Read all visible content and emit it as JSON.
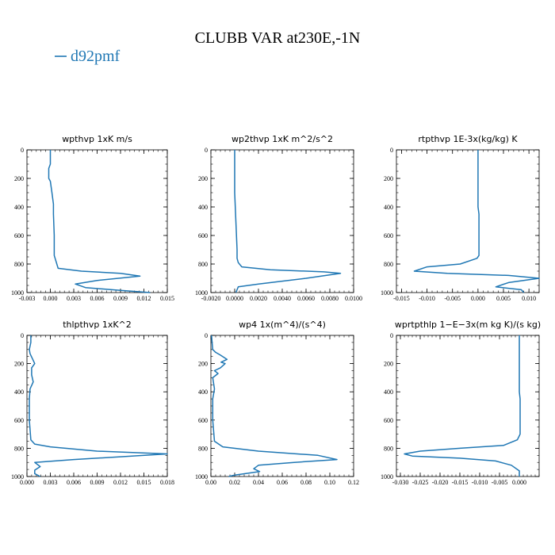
{
  "figure": {
    "title": "CLUBB VAR at230E,-1N",
    "legend_label": "d92pmf",
    "line_color": "#1f77b4"
  },
  "chart_data": [
    {
      "type": "line",
      "title": "wpthvp  1xK m/s",
      "xlim": [
        -0.003,
        0.015
      ],
      "xticks": [
        "-0.003",
        "0.000",
        "0.003",
        "0.006",
        "0.009",
        "0.012",
        "0.015"
      ],
      "ylim": [
        0,
        1000
      ],
      "yticks": [
        "0",
        "200",
        "400",
        "600",
        "800",
        "1000"
      ],
      "y_inverted": true,
      "series": [
        {
          "x": [
            0.0,
            0.0,
            -0.0002,
            -0.0002,
            0.0,
            0.0002,
            0.0004,
            0.0004,
            0.0005,
            0.0005,
            0.001,
            0.004,
            0.009,
            0.0115,
            0.006,
            0.0032,
            0.0045,
            0.009,
            0.0128
          ],
          "y": [
            0,
            100,
            130,
            200,
            220,
            300,
            380,
            450,
            600,
            740,
            830,
            850,
            865,
            885,
            915,
            940,
            965,
            985,
            1000
          ]
        }
      ]
    },
    {
      "type": "line",
      "title": "wp2thvp  1xK m^2/s^2",
      "xlim": [
        -0.002,
        0.01
      ],
      "xticks": [
        "-0.0020",
        "0.0000",
        "0.0020",
        "0.0040",
        "0.0060",
        "0.0080",
        "0.0100"
      ],
      "ylim": [
        0,
        1000
      ],
      "yticks": [
        "0",
        "200",
        "400",
        "600",
        "800",
        "1000"
      ],
      "y_inverted": true,
      "series": [
        {
          "x": [
            0.0,
            0.0,
            0.0001,
            0.0002,
            0.0002,
            0.0003,
            0.0006,
            0.003,
            0.0075,
            0.0089,
            0.006,
            0.002,
            0.0003,
            0.0001
          ],
          "y": [
            0,
            300,
            500,
            700,
            760,
            790,
            820,
            840,
            855,
            865,
            900,
            940,
            960,
            1000
          ]
        }
      ]
    },
    {
      "type": "line",
      "title": "rtpthvp  1E-3x(kg/kg) K",
      "xlim": [
        -0.016,
        0.012
      ],
      "xticks": [
        "-0.015",
        "-0.010",
        "-0.005",
        "0.000",
        "0.005",
        "0.010"
      ],
      "ylim": [
        0,
        1000
      ],
      "yticks": [
        "0",
        "200",
        "400",
        "600",
        "800",
        "1000"
      ],
      "y_inverted": true,
      "series": [
        {
          "x": [
            0.0,
            0.0,
            0.0002,
            0.0002,
            0.0002,
            -0.0002,
            -0.0035,
            -0.01,
            -0.0125,
            -0.006,
            0.006,
            0.012,
            0.006,
            0.0035,
            0.006,
            0.0085,
            0.009
          ],
          "y": [
            0,
            400,
            450,
            600,
            740,
            760,
            800,
            820,
            850,
            865,
            880,
            900,
            930,
            960,
            970,
            980,
            1000
          ]
        }
      ]
    },
    {
      "type": "line",
      "title": "thlpthvp  1xK^2",
      "xlim": [
        0.0,
        0.018
      ],
      "xticks": [
        "0.000",
        "0.003",
        "0.006",
        "0.009",
        "0.012",
        "0.015",
        "0.018"
      ],
      "ylim": [
        0,
        1000
      ],
      "yticks": [
        "0",
        "200",
        "400",
        "600",
        "800",
        "1000"
      ],
      "y_inverted": true,
      "series": [
        {
          "x": [
            0.0005,
            0.0005,
            0.0003,
            0.0004,
            0.001,
            0.0006,
            0.0006,
            0.0008,
            0.0004,
            0.0003,
            0.0003,
            0.0005,
            0.001,
            0.003,
            0.009,
            0.018,
            0.012,
            0.006,
            0.001,
            0.0017,
            0.001,
            0.001,
            0.0017
          ],
          "y": [
            0,
            50,
            100,
            130,
            200,
            230,
            280,
            330,
            380,
            450,
            600,
            740,
            770,
            790,
            820,
            840,
            860,
            880,
            900,
            930,
            955,
            980,
            1000
          ]
        }
      ]
    },
    {
      "type": "line",
      "title": "wp4  1x(m^4)/(s^4)",
      "xlim": [
        0.0,
        0.12
      ],
      "xticks": [
        "0.00",
        "0.02",
        "0.04",
        "0.06",
        "0.08",
        "0.10",
        "0.12"
      ],
      "ylim": [
        0,
        1000
      ],
      "yticks": [
        "0",
        "200",
        "400",
        "600",
        "800",
        "1000"
      ],
      "y_inverted": true,
      "series": [
        {
          "x": [
            0.0005,
            0.001,
            0.0015,
            0.004,
            0.008,
            0.0135,
            0.0085,
            0.012,
            0.008,
            0.003,
            0.006,
            0.0015,
            0.003,
            0.0015,
            0.0015,
            0.003,
            0.01,
            0.04,
            0.09,
            0.106,
            0.07,
            0.04,
            0.036,
            0.041,
            0.02,
            0.015
          ],
          "y": [
            0,
            50,
            100,
            120,
            140,
            170,
            190,
            200,
            230,
            250,
            270,
            300,
            380,
            450,
            600,
            750,
            790,
            820,
            850,
            880,
            900,
            920,
            945,
            965,
            990,
            1000
          ]
        }
      ]
    },
    {
      "type": "line",
      "title": "wprtpthlp  1−E−3x(m kg K)/(s kg)",
      "xlim": [
        -0.031,
        0.005
      ],
      "xticks": [
        "-0.030",
        "-0.025",
        "-0.020",
        "-0.015",
        "-0.010",
        "-0.005",
        "0.000"
      ],
      "ylim": [
        0,
        1000
      ],
      "yticks": [
        "0",
        "200",
        "400",
        "600",
        "800",
        "1000"
      ],
      "y_inverted": true,
      "series": [
        {
          "x": [
            0.0,
            0.0,
            0.0002,
            0.0002,
            -0.0005,
            -0.004,
            -0.015,
            -0.025,
            -0.029,
            -0.027,
            -0.015,
            -0.006,
            -0.002,
            0.0,
            0.0
          ],
          "y": [
            0,
            400,
            450,
            700,
            740,
            780,
            800,
            820,
            840,
            855,
            870,
            890,
            920,
            960,
            1000
          ]
        }
      ]
    }
  ]
}
